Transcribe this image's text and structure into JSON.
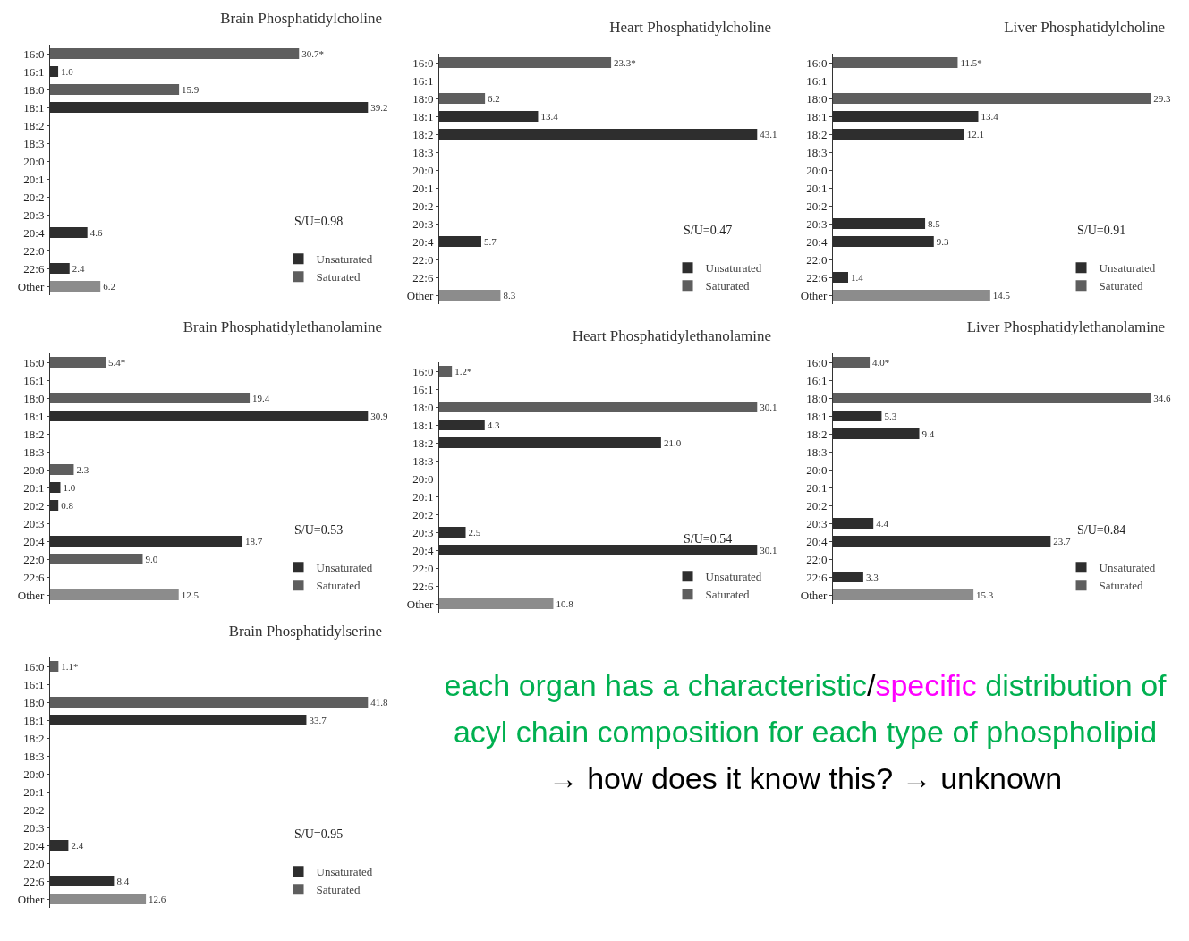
{
  "chart_data": [
    {
      "type": "bar",
      "orientation": "horizontal",
      "title": "Brain Phosphatidylcholine",
      "categories": [
        "16:0",
        "16:1",
        "18:0",
        "18:1",
        "18:2",
        "18:3",
        "20:0",
        "20:1",
        "20:2",
        "20:3",
        "20:4",
        "22:0",
        "22:6",
        "Other"
      ],
      "tick_labels": "y",
      "grid": false,
      "legend": "bottom right",
      "annotations": [
        "S/U=0.98"
      ],
      "series": [
        {
          "name": "Unsaturated",
          "color": "#2e2e2e",
          "values": [
            null,
            1.0,
            null,
            39.2,
            null,
            null,
            null,
            null,
            null,
            null,
            4.6,
            null,
            2.4,
            null
          ],
          "value_labels": [
            null,
            "1.0",
            null,
            "39.2",
            null,
            null,
            null,
            null,
            null,
            null,
            "4.6",
            null,
            "2.4",
            null
          ]
        },
        {
          "name": "Saturated",
          "color": "#5e5e5e",
          "values": [
            30.7,
            null,
            15.9,
            null,
            null,
            null,
            null,
            null,
            null,
            null,
            null,
            null,
            null,
            null
          ],
          "value_labels": [
            "30.7*",
            null,
            "15.9",
            null,
            null,
            null,
            null,
            null,
            null,
            null,
            null,
            null,
            null,
            null
          ]
        },
        {
          "color": "#8c8c8c",
          "values": [
            null,
            null,
            null,
            null,
            null,
            null,
            null,
            null,
            null,
            null,
            null,
            null,
            null,
            6.2
          ],
          "value_labels": [
            null,
            null,
            null,
            null,
            null,
            null,
            null,
            null,
            null,
            null,
            null,
            null,
            null,
            "6.2"
          ]
        }
      ]
    },
    {
      "type": "bar",
      "orientation": "horizontal",
      "title": "Heart Phosphatidylcholine",
      "categories": [
        "16:0",
        "16:1",
        "18:0",
        "18:1",
        "18:2",
        "18:3",
        "20:0",
        "20:1",
        "20:2",
        "20:3",
        "20:4",
        "22:0",
        "22:6",
        "Other"
      ],
      "tick_labels": "y",
      "grid": false,
      "legend": "bottom right",
      "annotations": [
        "S/U=0.47"
      ],
      "series": [
        {
          "name": "Unsaturated",
          "color": "#2e2e2e",
          "values": [
            null,
            null,
            null,
            13.4,
            43.1,
            null,
            null,
            null,
            null,
            null,
            5.7,
            null,
            null,
            null
          ],
          "value_labels": [
            null,
            null,
            null,
            "13.4",
            "43.1",
            null,
            null,
            null,
            null,
            null,
            "5.7",
            null,
            null,
            null
          ]
        },
        {
          "name": "Saturated",
          "color": "#5e5e5e",
          "values": [
            23.3,
            null,
            6.2,
            null,
            null,
            null,
            null,
            null,
            null,
            null,
            null,
            null,
            null,
            null
          ],
          "value_labels": [
            "23.3*",
            null,
            "6.2",
            null,
            null,
            null,
            null,
            null,
            null,
            null,
            null,
            null,
            null,
            null
          ]
        },
        {
          "color": "#8c8c8c",
          "values": [
            null,
            null,
            null,
            null,
            null,
            null,
            null,
            null,
            null,
            null,
            null,
            null,
            null,
            8.3
          ],
          "value_labels": [
            null,
            null,
            null,
            null,
            null,
            null,
            null,
            null,
            null,
            null,
            null,
            null,
            null,
            "8.3"
          ]
        }
      ]
    },
    {
      "type": "bar",
      "orientation": "horizontal",
      "title": "Liver Phosphatidylcholine",
      "categories": [
        "16:0",
        "16:1",
        "18:0",
        "18:1",
        "18:2",
        "18:3",
        "20:0",
        "20:1",
        "20:2",
        "20:3",
        "20:4",
        "22:0",
        "22:6",
        "Other"
      ],
      "tick_labels": "y",
      "grid": false,
      "legend": "bottom right",
      "annotations": [
        "S/U=0.91"
      ],
      "series": [
        {
          "name": "Unsaturated",
          "color": "#2e2e2e",
          "values": [
            null,
            null,
            null,
            13.4,
            12.1,
            null,
            null,
            null,
            null,
            8.5,
            9.3,
            null,
            1.4,
            null
          ],
          "value_labels": [
            null,
            null,
            null,
            "13.4",
            "12.1",
            null,
            null,
            null,
            null,
            "8.5",
            "9.3",
            null,
            "1.4",
            null
          ]
        },
        {
          "name": "Saturated",
          "color": "#5e5e5e",
          "values": [
            11.5,
            null,
            29.3,
            null,
            null,
            null,
            null,
            null,
            null,
            null,
            null,
            null,
            null,
            null
          ],
          "value_labels": [
            "11.5*",
            null,
            "29.3",
            null,
            null,
            null,
            null,
            null,
            null,
            null,
            null,
            null,
            null,
            null
          ]
        },
        {
          "color": "#8c8c8c",
          "values": [
            null,
            null,
            null,
            null,
            null,
            null,
            null,
            null,
            null,
            null,
            null,
            null,
            null,
            14.5
          ],
          "value_labels": [
            null,
            null,
            null,
            null,
            null,
            null,
            null,
            null,
            null,
            null,
            null,
            null,
            null,
            "14.5"
          ]
        }
      ]
    },
    {
      "type": "bar",
      "orientation": "horizontal",
      "title": "Brain Phosphatidylethanolamine",
      "categories": [
        "16:0",
        "16:1",
        "18:0",
        "18:1",
        "18:2",
        "18:3",
        "20:0",
        "20:1",
        "20:2",
        "20:3",
        "20:4",
        "22:0",
        "22:6",
        "Other"
      ],
      "tick_labels": "y",
      "grid": false,
      "legend": "bottom right",
      "annotations": [
        "S/U=0.53"
      ],
      "series": [
        {
          "name": "Unsaturated",
          "color": "#2e2e2e",
          "values": [
            null,
            null,
            null,
            30.9,
            null,
            null,
            null,
            1.0,
            0.8,
            null,
            18.7,
            null,
            null,
            null
          ],
          "value_labels": [
            null,
            null,
            null,
            "30.9",
            null,
            null,
            null,
            "1.0",
            "0.8",
            null,
            "18.7",
            null,
            null,
            null
          ]
        },
        {
          "name": "Saturated",
          "color": "#5e5e5e",
          "values": [
            5.4,
            null,
            19.4,
            null,
            null,
            null,
            2.3,
            null,
            null,
            null,
            null,
            9.0,
            null,
            null
          ],
          "value_labels": [
            "5.4*",
            null,
            "19.4",
            null,
            null,
            null,
            "2.3",
            null,
            null,
            null,
            null,
            "9.0",
            null,
            null
          ]
        },
        {
          "color": "#8c8c8c",
          "values": [
            null,
            null,
            null,
            null,
            null,
            null,
            null,
            null,
            null,
            null,
            null,
            null,
            null,
            12.5
          ],
          "value_labels": [
            null,
            null,
            null,
            null,
            null,
            null,
            null,
            null,
            null,
            null,
            null,
            null,
            null,
            "12.5"
          ]
        }
      ]
    },
    {
      "type": "bar",
      "orientation": "horizontal",
      "title": "Heart Phosphatidylethanolamine",
      "categories": [
        "16:0",
        "16:1",
        "18:0",
        "18:1",
        "18:2",
        "18:3",
        "20:0",
        "20:1",
        "20:2",
        "20:3",
        "20:4",
        "22:0",
        "22:6",
        "Other"
      ],
      "tick_labels": "y",
      "grid": false,
      "legend": "bottom right",
      "annotations": [
        "S/U=0.54"
      ],
      "series": [
        {
          "name": "Unsaturated",
          "color": "#2e2e2e",
          "values": [
            null,
            null,
            null,
            4.3,
            21.0,
            null,
            null,
            null,
            null,
            2.5,
            30.1,
            null,
            null,
            null
          ],
          "value_labels": [
            null,
            null,
            null,
            "4.3",
            "21.0",
            null,
            null,
            null,
            null,
            "2.5",
            "30.1",
            null,
            null,
            null
          ]
        },
        {
          "name": "Saturated",
          "color": "#5e5e5e",
          "values": [
            1.2,
            null,
            30.1,
            null,
            null,
            null,
            null,
            null,
            null,
            null,
            null,
            null,
            null,
            null
          ],
          "value_labels": [
            "1.2*",
            null,
            "30.1",
            null,
            null,
            null,
            null,
            null,
            null,
            null,
            null,
            null,
            null,
            null
          ]
        },
        {
          "color": "#8c8c8c",
          "values": [
            null,
            null,
            null,
            null,
            null,
            null,
            null,
            null,
            null,
            null,
            null,
            null,
            null,
            10.8
          ],
          "value_labels": [
            null,
            null,
            null,
            null,
            null,
            null,
            null,
            null,
            null,
            null,
            null,
            null,
            null,
            "10.8"
          ]
        }
      ]
    },
    {
      "type": "bar",
      "orientation": "horizontal",
      "title": "Liver Phosphatidylethanolamine",
      "categories": [
        "16:0",
        "16:1",
        "18:0",
        "18:1",
        "18:2",
        "18:3",
        "20:0",
        "20:1",
        "20:2",
        "20:3",
        "20:4",
        "22:0",
        "22:6",
        "Other"
      ],
      "tick_labels": "y",
      "grid": false,
      "legend": "bottom right",
      "annotations": [
        "S/U=0.84"
      ],
      "series": [
        {
          "name": "Unsaturated",
          "color": "#2e2e2e",
          "values": [
            null,
            null,
            null,
            5.3,
            9.4,
            null,
            null,
            null,
            null,
            4.4,
            23.7,
            null,
            3.3,
            null
          ],
          "value_labels": [
            null,
            null,
            null,
            "5.3",
            "9.4",
            null,
            null,
            null,
            null,
            "4.4",
            "23.7",
            null,
            "3.3",
            null
          ]
        },
        {
          "name": "Saturated",
          "color": "#5e5e5e",
          "values": [
            4.0,
            null,
            34.6,
            null,
            null,
            null,
            null,
            null,
            null,
            null,
            null,
            null,
            null,
            null
          ],
          "value_labels": [
            "4.0*",
            null,
            "34.6",
            null,
            null,
            null,
            null,
            null,
            null,
            null,
            null,
            null,
            null,
            null
          ]
        },
        {
          "color": "#8c8c8c",
          "values": [
            null,
            null,
            null,
            null,
            null,
            null,
            null,
            null,
            null,
            null,
            null,
            null,
            null,
            15.3
          ],
          "value_labels": [
            null,
            null,
            null,
            null,
            null,
            null,
            null,
            null,
            null,
            null,
            null,
            null,
            null,
            "15.3"
          ]
        }
      ]
    },
    {
      "type": "bar",
      "orientation": "horizontal",
      "title": "Brain Phosphatidylserine",
      "categories": [
        "16:0",
        "16:1",
        "18:0",
        "18:1",
        "18:2",
        "18:3",
        "20:0",
        "20:1",
        "20:2",
        "20:3",
        "20:4",
        "22:0",
        "22:6",
        "Other"
      ],
      "tick_labels": "y",
      "grid": false,
      "legend": "bottom right",
      "annotations": [
        "S/U=0.95"
      ],
      "series": [
        {
          "name": "Unsaturated",
          "color": "#2e2e2e",
          "values": [
            null,
            null,
            null,
            33.7,
            null,
            null,
            null,
            null,
            null,
            null,
            2.4,
            null,
            8.4,
            null
          ],
          "value_labels": [
            null,
            null,
            null,
            "33.7",
            null,
            null,
            null,
            null,
            null,
            null,
            "2.4",
            null,
            "8.4",
            null
          ]
        },
        {
          "name": "Saturated",
          "color": "#5e5e5e",
          "values": [
            1.1,
            null,
            41.8,
            null,
            null,
            null,
            null,
            null,
            null,
            null,
            null,
            null,
            null,
            null
          ],
          "value_labels": [
            "1.1*",
            null,
            "41.8",
            null,
            null,
            null,
            null,
            null,
            null,
            null,
            null,
            null,
            null,
            null
          ]
        },
        {
          "color": "#8c8c8c",
          "values": [
            null,
            null,
            null,
            null,
            null,
            null,
            null,
            null,
            null,
            null,
            null,
            null,
            null,
            12.6
          ],
          "value_labels": [
            null,
            null,
            null,
            null,
            null,
            null,
            null,
            null,
            null,
            null,
            null,
            null,
            null,
            "12.6"
          ]
        }
      ]
    },
    {
      "type": "other",
      "annotations": [
        "each organ has a characteristic",
        "/",
        "specific",
        " distribution of acyl chain composition for each type of phospholipid",
        " → how does it know this? → unknown"
      ],
      "colors": [
        "#00b050",
        "#000000",
        "#ff00ff",
        "#00b050",
        "#000000"
      ]
    }
  ]
}
